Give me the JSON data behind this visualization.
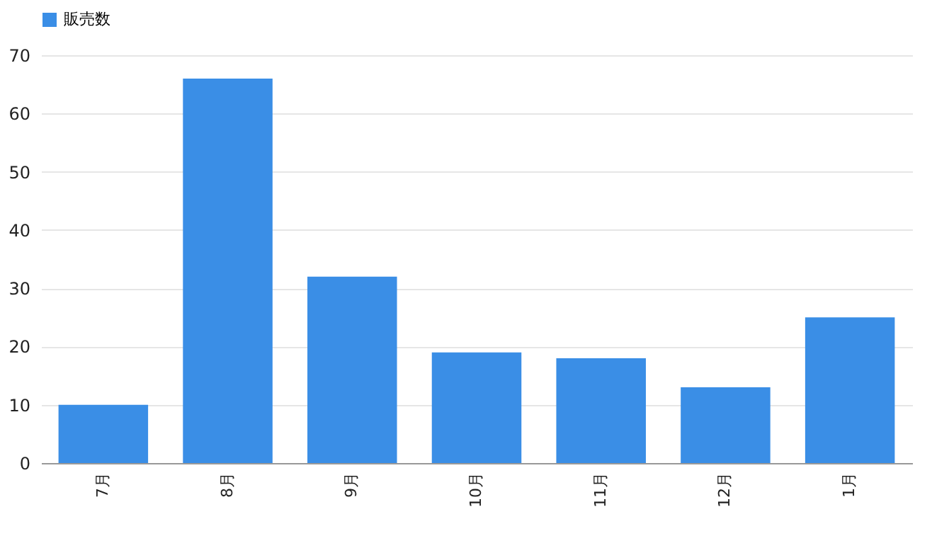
{
  "chart_data": {
    "type": "bar",
    "categories": [
      "7月",
      "8月",
      "9月",
      "10月",
      "11月",
      "12月",
      "1月"
    ],
    "series": [
      {
        "name": "販売数",
        "color": "#3a8ee6",
        "values": [
          10,
          66,
          32,
          19,
          18,
          13,
          25
        ]
      }
    ],
    "ylim": [
      0,
      70
    ],
    "yticks": [
      0,
      10,
      20,
      30,
      40,
      50,
      60,
      70
    ],
    "grid": "y",
    "legend": "top"
  }
}
